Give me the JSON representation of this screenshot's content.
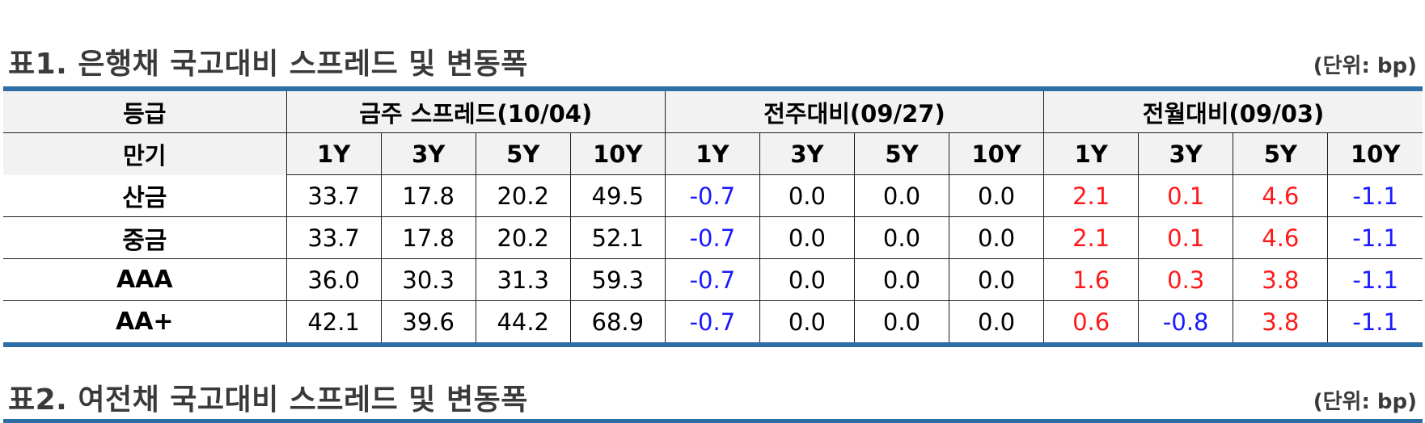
{
  "table1": {
    "title": "표1. 은행채 국고대비 스프레드 및 변동폭",
    "unit": "(단위: bp)",
    "grade_header": "등급",
    "maturity_header": "만기",
    "groups": [
      "금주 스프레드(10/04)",
      "전주대비(09/27)",
      "전월대비(09/03)"
    ],
    "maturities": [
      "1Y",
      "3Y",
      "5Y",
      "10Y",
      "1Y",
      "3Y",
      "5Y",
      "10Y",
      "1Y",
      "3Y",
      "5Y",
      "10Y"
    ],
    "rows": [
      {
        "grade": "산금",
        "values": [
          "33.7",
          "17.8",
          "20.2",
          "49.5",
          "-0.7",
          "0.0",
          "0.0",
          "0.0",
          "2.1",
          "0.1",
          "4.6",
          "-1.1"
        ]
      },
      {
        "grade": "중금",
        "values": [
          "33.7",
          "17.8",
          "20.2",
          "52.1",
          "-0.7",
          "0.0",
          "0.0",
          "0.0",
          "2.1",
          "0.1",
          "4.6",
          "-1.1"
        ]
      },
      {
        "grade": "AAA",
        "values": [
          "36.0",
          "30.3",
          "31.3",
          "59.3",
          "-0.7",
          "0.0",
          "0.0",
          "0.0",
          "1.6",
          "0.3",
          "3.8",
          "-1.1"
        ]
      },
      {
        "grade": "AA+",
        "values": [
          "42.1",
          "39.6",
          "44.2",
          "68.9",
          "-0.7",
          "0.0",
          "0.0",
          "0.0",
          "0.6",
          "-0.8",
          "3.8",
          "-1.1"
        ]
      }
    ]
  },
  "table2": {
    "title": "표2. 여전채 국고대비 스프레드 및 변동폭",
    "unit": "(단위: bp)"
  },
  "colors": {
    "rule": "#2e6ea6",
    "positive_change": "#ff1a1a",
    "negative_change": "#1a1aff",
    "header_bg": "#f2f2f2"
  }
}
